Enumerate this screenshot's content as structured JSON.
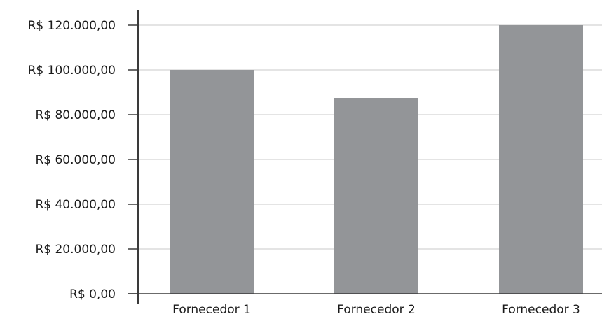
{
  "chart_data": {
    "type": "bar",
    "title": "",
    "xlabel": "",
    "ylabel": "",
    "categories": [
      "Fornecedor 1",
      "Fornecedor 2",
      "Fornecedor 3"
    ],
    "values": [
      100000,
      87500,
      120000
    ],
    "ylim": [
      0,
      120000
    ],
    "yticks": [
      0,
      20000,
      40000,
      60000,
      80000,
      100000,
      120000
    ],
    "ytick_labels": [
      "R$ 0,00",
      "R$ 20.000,00",
      "R$ 40.000,00",
      "R$ 60.000,00",
      "R$ 80.000,00",
      "R$ 100.000,00",
      "R$ 120.000,00"
    ],
    "grid": true,
    "legend": "none",
    "colors": {
      "bar": "#939598",
      "grid": "#c8c8c8",
      "axis": "#3a3a3a",
      "text": "#1a1a1a"
    }
  }
}
